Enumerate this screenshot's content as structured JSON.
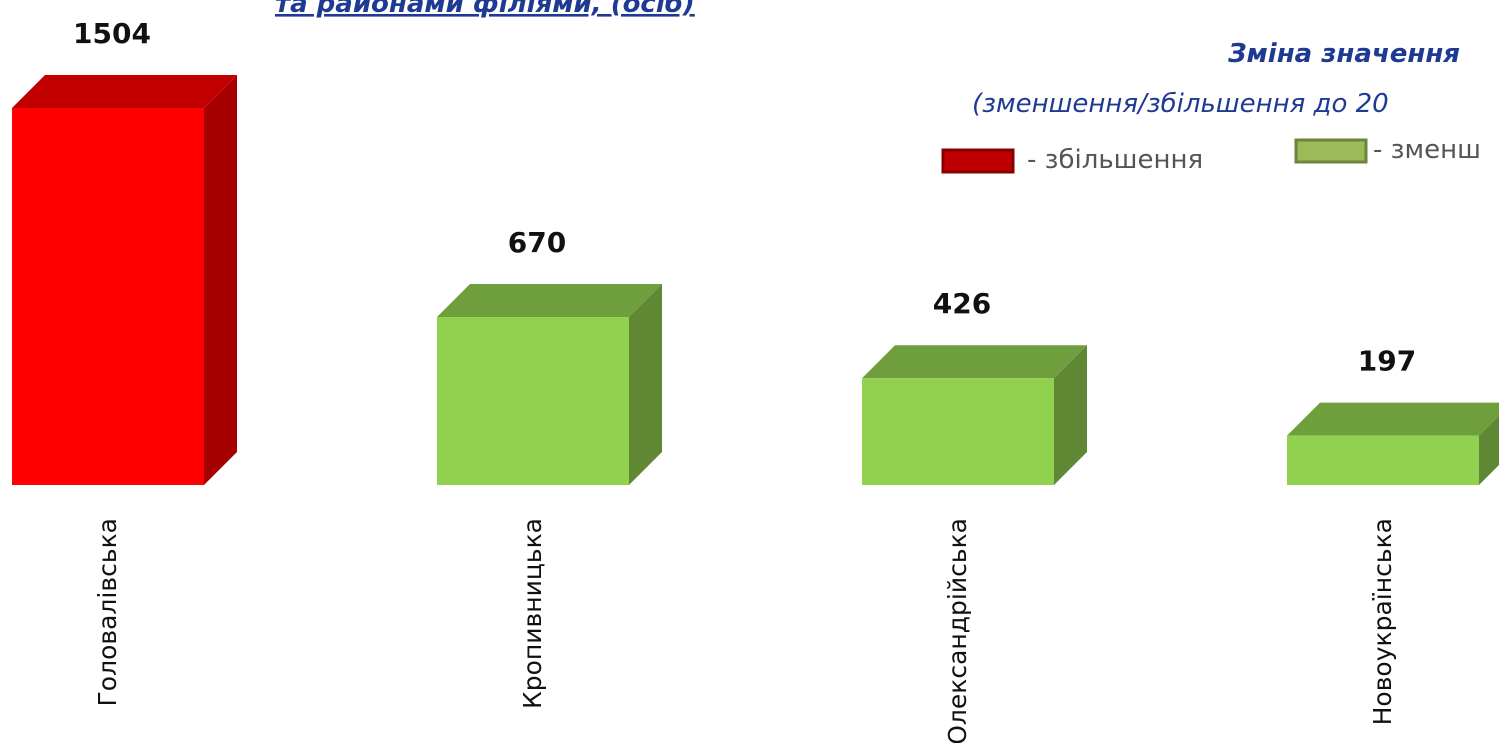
{
  "chart_data": {
    "type": "bar3d",
    "title": "та районами філіями, (осіб)",
    "legend_title": "Зміна значення",
    "legend_subtitle": "(зменшення/збільшення до 20",
    "legend_items": [
      {
        "label": "- збільшення",
        "color": "#c00000"
      },
      {
        "label": "- зменш",
        "color": "#9bbb59"
      }
    ],
    "categories": [
      "Головалівська",
      "Кропивницька",
      "Олександрійська",
      "Новоукраїнська"
    ],
    "values": [
      1504,
      670,
      426,
      197
    ],
    "colors": [
      "#ff0000",
      "#92d050",
      "#92d050",
      "#92d050"
    ]
  }
}
